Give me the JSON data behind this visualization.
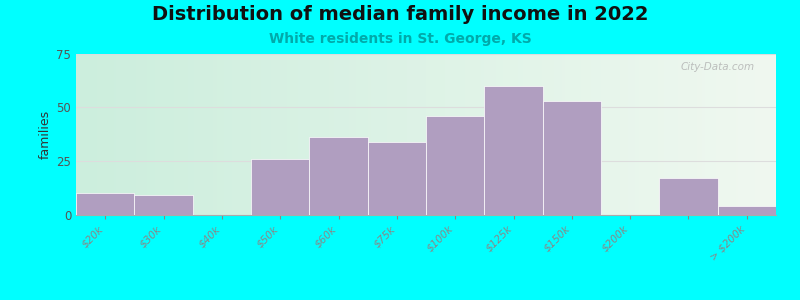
{
  "title": "Distribution of median family income in 2022",
  "subtitle": "White residents in St. George, KS",
  "ylabel": "families",
  "background_outer": "#00FFFF",
  "bar_color": "#b09ec0",
  "bar_edgecolor": "#ffffff",
  "xlabels": [
    "$20k",
    "$30k",
    "$40k",
    "$50k",
    "$60k",
    "$75k",
    "$100k",
    "$125k",
    "$150k",
    "$200k",
    "> $200k"
  ],
  "heights": [
    10,
    9,
    0,
    26,
    36,
    34,
    46,
    60,
    53,
    0,
    17,
    4
  ],
  "n_bins": 12,
  "ylim": [
    0,
    75
  ],
  "yticks": [
    0,
    25,
    50,
    75
  ],
  "title_fontsize": 14,
  "subtitle_fontsize": 10,
  "ylabel_fontsize": 9,
  "watermark": "City-Data.com",
  "grid_color": "#dddddd",
  "tick_label_color": "#555555",
  "subtitle_color": "#00aaaa",
  "title_color": "#111111"
}
